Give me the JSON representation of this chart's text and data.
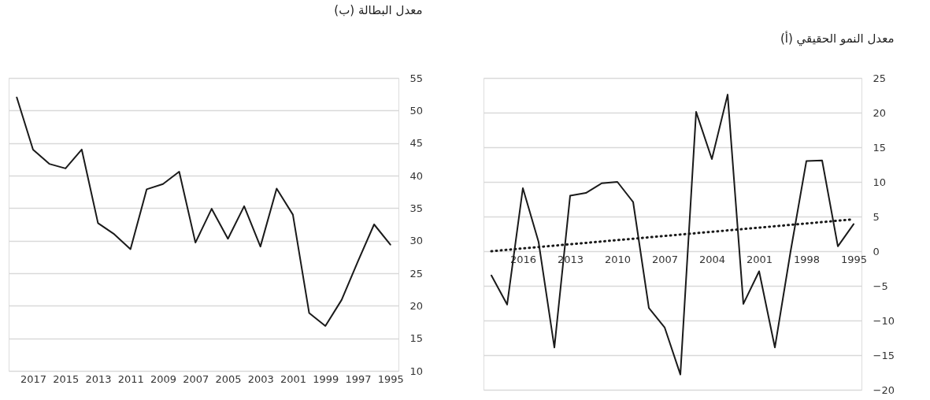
{
  "chart_data": [
    {
      "type": "line",
      "title": "(ب) معدل البطالة",
      "x": [
        2018,
        2017,
        2016,
        2015,
        2014,
        2013,
        2012,
        2011,
        2010,
        2009,
        2008,
        2007,
        2006,
        2005,
        2004,
        2003,
        2002,
        2001,
        2000,
        1999,
        1998,
        1997,
        1996,
        1995
      ],
      "series": [
        {
          "color": "#1a1a1a",
          "values": [
            52,
            44,
            41.8,
            41.1,
            44,
            32.7,
            31,
            28.7,
            37.9,
            38.7,
            40.6,
            29.7,
            34.9,
            30.3,
            35.3,
            29.1,
            38,
            34,
            18.9,
            16.9,
            20.9,
            26.8,
            32.5,
            29.4
          ]
        }
      ],
      "xlim": [
        2018.5,
        1994.5
      ],
      "xticks": [
        2017,
        2015,
        2013,
        2011,
        2009,
        2007,
        2005,
        2003,
        2001,
        1999,
        1997,
        1995
      ],
      "ylim": [
        10,
        55
      ],
      "yticks": [
        10,
        15,
        20,
        25,
        30,
        35,
        40,
        45,
        50,
        55
      ],
      "grid": "y"
    },
    {
      "type": "line",
      "title": "(أ) معدل النمو الحقيقي",
      "x": [
        2018,
        2017,
        2016,
        2015,
        2014,
        2013,
        2012,
        2011,
        2010,
        2009,
        2008,
        2007,
        2006,
        2005,
        2004,
        2003,
        2002,
        2001,
        2000,
        1999,
        1998,
        1997,
        1996,
        1995
      ],
      "series": [
        {
          "color": "#1a1a1a",
          "values": [
            -3.5,
            -7.7,
            9.1,
            1.3,
            -13.9,
            8.0,
            8.4,
            9.8,
            10.0,
            7.1,
            -8.2,
            -11.0,
            -17.8,
            20.1,
            13.3,
            22.6,
            -7.6,
            -2.9,
            -13.9,
            0,
            13.0,
            13.1,
            0.7,
            3.9
          ]
        },
        {
          "type": "line",
          "color": "#1a1a1a",
          "line_style": "dotted",
          "x": [
            2018,
            1995
          ],
          "values": [
            0,
            4.6
          ]
        }
      ],
      "xlim": [
        2018.5,
        1994.5
      ],
      "xticks": [
        2016,
        2013,
        2010,
        2007,
        2004,
        2001,
        1998,
        1995
      ],
      "ylim": [
        -20,
        25
      ],
      "yticks": [
        -20,
        -15,
        -10,
        -5,
        0,
        5,
        10,
        15,
        20,
        25
      ],
      "grid": "y"
    }
  ]
}
